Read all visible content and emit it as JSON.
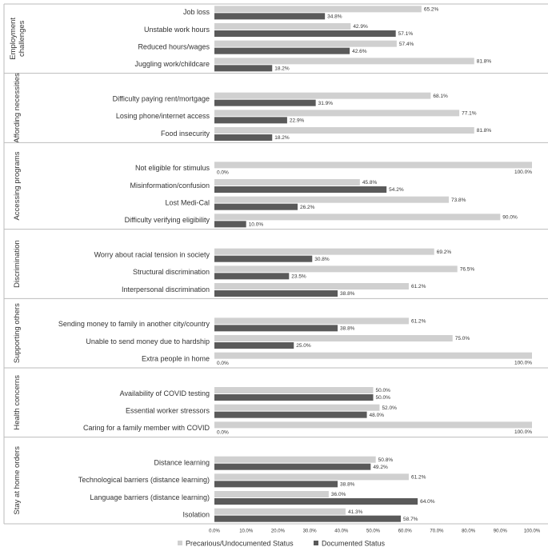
{
  "chart_data": {
    "type": "bar",
    "orientation": "horizontal",
    "groups": [
      {
        "label": [
          "Employment",
          "challenges"
        ],
        "categories": [
          "Job loss",
          "Unstable work hours",
          "Reduced hours/wages",
          "Juggling work/childcare"
        ]
      },
      {
        "label": [
          "Affording necessities"
        ],
        "categories": [
          "Difficulty paying rent/mortgage",
          "Losing phone/internet access",
          "Food insecurity"
        ]
      },
      {
        "label": [
          "Accessing programs"
        ],
        "categories": [
          "Not eligible for stimulus",
          "Misinformation/confusion",
          "Lost Medi-Cal",
          "Difficulty verifying eligibility"
        ]
      },
      {
        "label": [
          "Discrimination"
        ],
        "categories": [
          "Worry about racial tension in society",
          "Structural discrimination",
          "Interpersonal discrimination"
        ]
      },
      {
        "label": [
          "Supporting others"
        ],
        "categories": [
          "Sending money to family in another city/country",
          "Unable to send money due to hardship",
          "Extra people in home"
        ]
      },
      {
        "label": [
          "Health concerns"
        ],
        "categories": [
          "Availability of COVID testing",
          "Essential worker stressors",
          "Caring for a family member with COVID"
        ]
      },
      {
        "label": [
          "Stay at home orders"
        ],
        "categories": [
          "Distance learning",
          "Technological barriers (distance learning)",
          "Language barriers (distance learning)",
          "Isolation"
        ]
      }
    ],
    "series": [
      {
        "name": "Precarious/Undocumented Status",
        "color": "#d0d0d0",
        "values": [
          65.2,
          42.9,
          57.4,
          81.8,
          68.1,
          77.1,
          81.8,
          100.0,
          45.8,
          73.8,
          90.0,
          69.2,
          76.5,
          61.2,
          61.2,
          75.0,
          100.0,
          50.0,
          52.0,
          100.0,
          50.8,
          61.2,
          36.0,
          41.3
        ],
        "value_labels": [
          "65.2%",
          "42.9%",
          "57.4%",
          "81.8%",
          "68.1%",
          "77.1%",
          "81.8%",
          "100.0%",
          "45.8%",
          "73.8%",
          "90.0%",
          "69.2%",
          "76.5%",
          "61.2%",
          "61.2%",
          "75.0%",
          "100.0%",
          "50.0%",
          "52.0%",
          "100.0%",
          "50.8%",
          "61.2%",
          "36.0%",
          "41.3%"
        ]
      },
      {
        "name": "Documented Status",
        "color": "#5a5a5a",
        "values": [
          34.8,
          57.1,
          42.6,
          18.2,
          31.9,
          22.9,
          18.2,
          0.0,
          54.2,
          26.2,
          10.0,
          30.8,
          23.5,
          38.8,
          38.8,
          25.0,
          0.0,
          50.0,
          48.0,
          0.0,
          49.2,
          38.8,
          64.0,
          58.7
        ],
        "value_labels": [
          "34.8%",
          "57.1%",
          "42.6%",
          "18.2%",
          "31.9%",
          "22.9%",
          "18.2%",
          "0.0%",
          "54.2%",
          "26.2%",
          "10.0%",
          "30.8%",
          "23.5%",
          "38.8%",
          "38.8%",
          "25.0%",
          "0.0%",
          "50.0%",
          "48.0%",
          "0.0%",
          "49.2%",
          "38.8%",
          "64.0%",
          "58.7%"
        ]
      }
    ],
    "xlim": [
      0,
      100
    ],
    "xticks": [
      {
        "value": 0,
        "label": "0.0%"
      },
      {
        "value": 10,
        "label": "10.0%"
      },
      {
        "value": 20,
        "label": "20.0%"
      },
      {
        "value": 30,
        "label": "30.0%"
      },
      {
        "value": 40,
        "label": "40.0%"
      },
      {
        "value": 50,
        "label": "50.0%"
      },
      {
        "value": 60,
        "label": "60.0%"
      },
      {
        "value": 70,
        "label": "70.0%"
      },
      {
        "value": 80,
        "label": "80.0%"
      },
      {
        "value": 90,
        "label": "90.0%"
      },
      {
        "value": 100,
        "label": "100.0%"
      }
    ],
    "legend": "bottom"
  }
}
